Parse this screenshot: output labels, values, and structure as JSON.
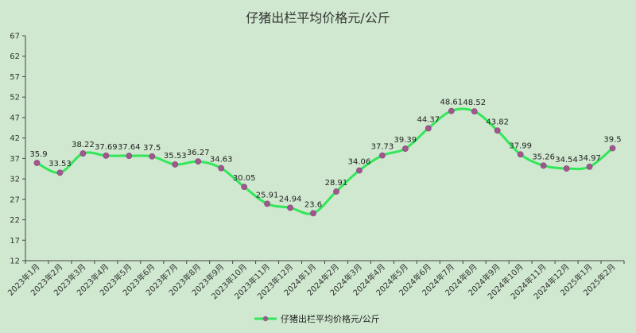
{
  "chart_data": {
    "type": "line",
    "title": "仔猪出栏平均价格元/公斤",
    "xlabel": "",
    "ylabel": "",
    "ylim": [
      12,
      67
    ],
    "yticks": [
      12,
      17,
      22,
      27,
      32,
      37,
      42,
      47,
      52,
      57,
      62,
      67
    ],
    "grid": false,
    "legend": "bottom-center",
    "categories": [
      "2023年1月",
      "2023年2月",
      "2023年3月",
      "2023年4月",
      "2023年5月",
      "2023年6月",
      "2023年7月",
      "2023年8月",
      "2023年9月",
      "2023年10月",
      "2023年11月",
      "2023年12月",
      "2024年1月",
      "2024年2月",
      "2024年3月",
      "2024年4月",
      "2024年5月",
      "2024年6月",
      "2024年7月",
      "2024年8月",
      "2024年9月",
      "2024年10月",
      "2024年11月",
      "2024年12月",
      "2025年1月",
      "2025年2月"
    ],
    "series": [
      {
        "name": "仔猪出栏平均价格元/公斤",
        "values": [
          35.9,
          33.53,
          38.22,
          37.69,
          37.64,
          37.5,
          35.53,
          36.27,
          34.63,
          30.05,
          25.91,
          24.94,
          23.6,
          28.91,
          34.06,
          37.73,
          39.39,
          44.37,
          48.61,
          48.52,
          43.82,
          37.99,
          35.26,
          34.54,
          34.97,
          39.5
        ],
        "labels": [
          "35.9",
          "33.53",
          "38.22",
          "37.69",
          "37.64",
          "37.5",
          "35.53",
          "36.27",
          "34.63",
          "30.05",
          "25.91",
          "24.94",
          "23.6",
          "28.91",
          "34.06",
          "37.73",
          "39.39",
          "44.37",
          "48.61",
          "48.52",
          "43.82",
          "37.99",
          "35.26",
          "34.54",
          "34.97",
          "39.5"
        ]
      }
    ],
    "colors": {
      "background": "#cfe8cf",
      "line": "#33e65a",
      "marker": "#a0568f",
      "axis": "#444444",
      "text": "#333333"
    }
  }
}
